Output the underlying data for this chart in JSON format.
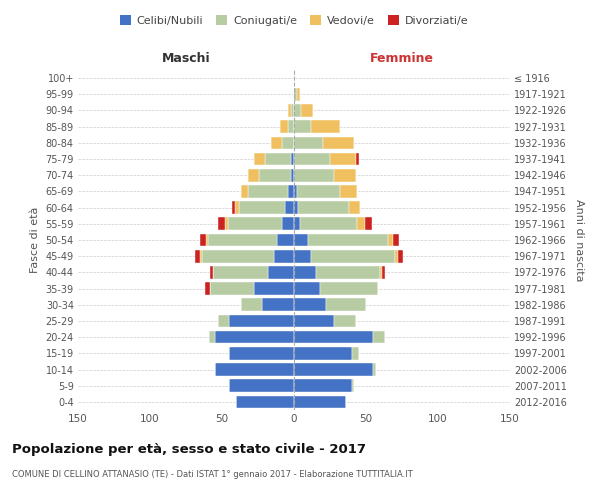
{
  "age_groups": [
    "0-4",
    "5-9",
    "10-14",
    "15-19",
    "20-24",
    "25-29",
    "30-34",
    "35-39",
    "40-44",
    "45-49",
    "50-54",
    "55-59",
    "60-64",
    "65-69",
    "70-74",
    "75-79",
    "80-84",
    "85-89",
    "90-94",
    "95-99",
    "100+"
  ],
  "birth_years": [
    "2012-2016",
    "2007-2011",
    "2002-2006",
    "1997-2001",
    "1992-1996",
    "1987-1991",
    "1982-1986",
    "1977-1981",
    "1972-1976",
    "1967-1971",
    "1962-1966",
    "1957-1961",
    "1952-1956",
    "1947-1951",
    "1942-1946",
    "1937-1941",
    "1932-1936",
    "1927-1931",
    "1922-1926",
    "1917-1921",
    "≤ 1916"
  ],
  "maschi_celibi": [
    40,
    45,
    55,
    45,
    55,
    45,
    22,
    28,
    18,
    14,
    12,
    8,
    6,
    4,
    2,
    2,
    0,
    0,
    0,
    0,
    0
  ],
  "maschi_coniugati": [
    0,
    0,
    0,
    0,
    4,
    8,
    15,
    30,
    38,
    50,
    48,
    38,
    32,
    28,
    22,
    18,
    8,
    4,
    2,
    0,
    0
  ],
  "maschi_vedovi": [
    0,
    0,
    0,
    0,
    0,
    0,
    0,
    0,
    0,
    1,
    1,
    2,
    3,
    5,
    8,
    8,
    8,
    6,
    2,
    0,
    0
  ],
  "maschi_divorziati": [
    0,
    0,
    0,
    0,
    0,
    0,
    0,
    4,
    2,
    4,
    4,
    5,
    2,
    0,
    0,
    0,
    0,
    0,
    0,
    0,
    0
  ],
  "femmine_celibi": [
    36,
    40,
    55,
    40,
    55,
    28,
    22,
    18,
    15,
    12,
    10,
    4,
    3,
    2,
    0,
    0,
    0,
    0,
    0,
    0,
    0
  ],
  "femmine_coniugati": [
    0,
    2,
    2,
    5,
    8,
    15,
    28,
    40,
    45,
    58,
    55,
    40,
    35,
    30,
    28,
    25,
    20,
    12,
    5,
    2,
    0
  ],
  "femmine_vedovi": [
    0,
    0,
    0,
    0,
    0,
    0,
    0,
    0,
    1,
    2,
    4,
    5,
    8,
    12,
    15,
    18,
    22,
    20,
    8,
    2,
    0
  ],
  "femmine_divorziati": [
    0,
    0,
    0,
    0,
    0,
    0,
    0,
    0,
    2,
    4,
    4,
    5,
    0,
    0,
    0,
    2,
    0,
    0,
    0,
    0,
    0
  ],
  "colors": {
    "celibi": "#4472c4",
    "coniugati": "#b8cca4",
    "vedovi": "#f0c060",
    "divorziati": "#cc2222"
  },
  "title": "Popolazione per età, sesso e stato civile - 2017",
  "subtitle": "COMUNE DI CELLINO ATTANASIO (TE) - Dati ISTAT 1° gennaio 2017 - Elaborazione TUTTITALIA.IT",
  "xlabel_left": "Maschi",
  "xlabel_right": "Femmine",
  "ylabel_left": "Fasce di età",
  "ylabel_right": "Anni di nascita",
  "xlim": 150,
  "bg_color": "#ffffff",
  "grid_color": "#cccccc",
  "legend_labels": [
    "Celibi/Nubili",
    "Coniugati/e",
    "Vedovi/e",
    "Divorziati/e"
  ]
}
